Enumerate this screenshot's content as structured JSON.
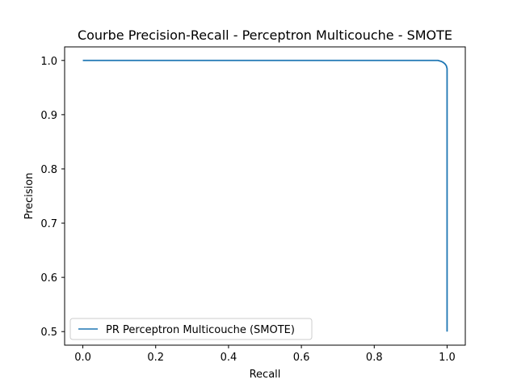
{
  "chart_data": {
    "type": "line",
    "title": "Courbe Precision-Recall - Perceptron Multicouche - SMOTE",
    "xlabel": "Recall",
    "ylabel": "Precision",
    "xlim": [
      -0.05,
      1.05
    ],
    "ylim": [
      0.475,
      1.025
    ],
    "x_ticks": [
      0.0,
      0.2,
      0.4,
      0.6,
      0.8,
      1.0
    ],
    "x_tick_labels": [
      "0.0",
      "0.2",
      "0.4",
      "0.6",
      "0.8",
      "1.0"
    ],
    "y_ticks": [
      0.5,
      0.6,
      0.7,
      0.8,
      0.9,
      1.0
    ],
    "y_tick_labels": [
      "0.5",
      "0.6",
      "0.7",
      "0.8",
      "0.9",
      "1.0"
    ],
    "grid": false,
    "legend_position": "lower-left",
    "series": [
      {
        "name": "PR Perceptron Multicouche (SMOTE)",
        "color": "#1f77b4",
        "x": [
          0.0,
          0.95,
          0.975,
          0.985,
          0.99,
          0.995,
          0.998,
          1.0,
          1.0,
          1.0
        ],
        "y": [
          1.0,
          1.0,
          1.0,
          0.998,
          0.996,
          0.993,
          0.99,
          0.985,
          0.9,
          0.5
        ]
      }
    ]
  }
}
